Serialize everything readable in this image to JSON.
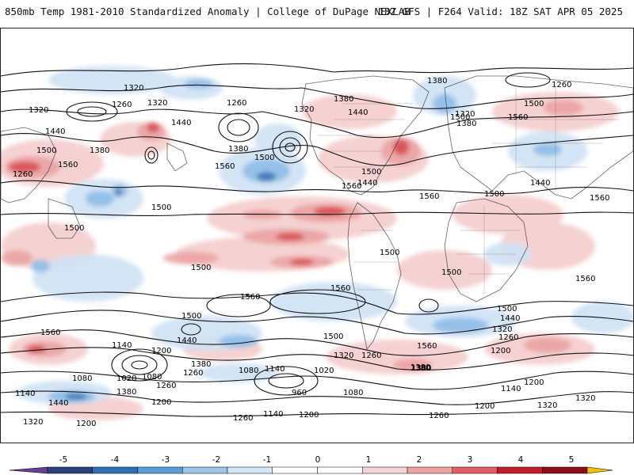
{
  "header": {
    "title_left": "850mb Temp 1981-2010 Standardized Anomaly | College of DuPage NEXLAB",
    "title_right": "18Z GFS | F264 Valid: 18Z SAT APR 05 2025"
  },
  "colorbar": {
    "ticks": [
      "-5",
      "-4",
      "-3",
      "-2",
      "-1",
      "0",
      "1",
      "2",
      "3",
      "4",
      "5"
    ],
    "colors": [
      "#6a3d9a",
      "#2b3f7a",
      "#2f6fb3",
      "#5a9ad8",
      "#9cc5ea",
      "#d3e6f6",
      "#ffffff",
      "#ffffff",
      "#f7d4d4",
      "#eda3a3",
      "#df5f63",
      "#c01f2a",
      "#8b0f18",
      "#f2c200"
    ]
  },
  "contour_labels": [
    {
      "text": "1320"
    },
    {
      "text": "1260"
    },
    {
      "text": "1320"
    },
    {
      "text": "1260"
    },
    {
      "text": "1320"
    },
    {
      "text": "1380"
    },
    {
      "text": "1260"
    },
    {
      "text": "1500"
    },
    {
      "text": "1440"
    },
    {
      "text": "1380"
    },
    {
      "text": "1320"
    },
    {
      "text": "1440"
    },
    {
      "text": "1500"
    },
    {
      "text": "1560"
    },
    {
      "text": "1380"
    },
    {
      "text": "1500"
    },
    {
      "text": "1560"
    },
    {
      "text": "1380"
    },
    {
      "text": "1440"
    },
    {
      "text": "1560"
    },
    {
      "text": "1560"
    },
    {
      "text": "1380"
    },
    {
      "text": "1320"
    },
    {
      "text": "1440"
    },
    {
      "text": "1260"
    },
    {
      "text": "1500"
    },
    {
      "text": "1560"
    },
    {
      "text": "1500"
    },
    {
      "text": "1560"
    },
    {
      "text": "1500"
    },
    {
      "text": "1440"
    },
    {
      "text": "1500"
    },
    {
      "text": "1500"
    },
    {
      "text": "1500"
    },
    {
      "text": "1500"
    },
    {
      "text": "1560"
    },
    {
      "text": "1560"
    },
    {
      "text": "1500"
    },
    {
      "text": "1440"
    },
    {
      "text": "1560"
    },
    {
      "text": "1500"
    },
    {
      "text": "1560"
    },
    {
      "text": "1500"
    },
    {
      "text": "1440"
    },
    {
      "text": "1320"
    },
    {
      "text": "1260"
    },
    {
      "text": "1200"
    },
    {
      "text": "1560"
    },
    {
      "text": "1500"
    },
    {
      "text": "1380"
    },
    {
      "text": "1260"
    },
    {
      "text": "1320"
    },
    {
      "text": "1140"
    },
    {
      "text": "1200"
    },
    {
      "text": "1380"
    },
    {
      "text": "1260"
    },
    {
      "text": "1080"
    },
    {
      "text": "1140"
    },
    {
      "text": "1020"
    },
    {
      "text": "1020"
    },
    {
      "text": "1080"
    },
    {
      "text": "1440"
    },
    {
      "text": "1320"
    },
    {
      "text": "1260"
    },
    {
      "text": "1380"
    },
    {
      "text": "1080"
    },
    {
      "text": "1140"
    },
    {
      "text": "1200"
    },
    {
      "text": "1140"
    },
    {
      "text": "1380"
    },
    {
      "text": "1200"
    },
    {
      "text": "1200"
    },
    {
      "text": "960"
    },
    {
      "text": "1080"
    },
    {
      "text": "1200"
    },
    {
      "text": "1140"
    },
    {
      "text": "1260"
    },
    {
      "text": "1260"
    },
    {
      "text": "1200"
    },
    {
      "text": "1320"
    },
    {
      "text": "1320"
    },
    {
      "text": "1380"
    }
  ]
}
